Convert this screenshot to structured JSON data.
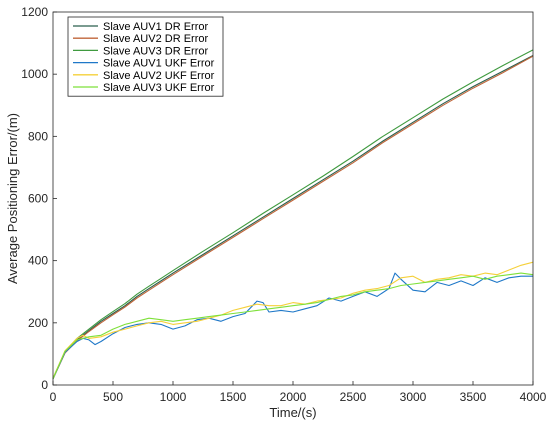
{
  "chart_data": {
    "type": "line",
    "xlabel": "Time/(s)",
    "ylabel": "Average Positioning Error/(m)",
    "xlim": [
      0,
      4000
    ],
    "ylim": [
      0,
      1200
    ],
    "xticks": [
      0,
      500,
      1000,
      1500,
      2000,
      2500,
      3000,
      3500,
      4000
    ],
    "yticks": [
      0,
      200,
      400,
      600,
      800,
      1000,
      1200
    ],
    "grid": false,
    "legend_position": "top-left",
    "series": [
      {
        "name": "Slave AUV1 DR Error",
        "color": "#2b5f4e",
        "x": [
          0,
          100,
          200,
          300,
          400,
          500,
          600,
          700,
          800,
          900,
          1000,
          1250,
          1500,
          1750,
          2000,
          2250,
          2500,
          2750,
          3000,
          3250,
          3500,
          3750,
          4000
        ],
        "y": [
          20,
          105,
          145,
          175,
          205,
          230,
          255,
          285,
          310,
          335,
          360,
          420,
          480,
          540,
          600,
          660,
          720,
          785,
          845,
          905,
          960,
          1010,
          1060
        ]
      },
      {
        "name": "Slave AUV2 DR Error",
        "color": "#c0653a",
        "x": [
          0,
          100,
          200,
          300,
          400,
          500,
          600,
          700,
          800,
          900,
          1000,
          1250,
          1500,
          1750,
          2000,
          2250,
          2500,
          2750,
          3000,
          3250,
          3500,
          3750,
          4000
        ],
        "y": [
          20,
          103,
          142,
          172,
          200,
          226,
          251,
          280,
          305,
          330,
          355,
          415,
          475,
          535,
          595,
          655,
          715,
          780,
          840,
          900,
          955,
          1005,
          1058
        ]
      },
      {
        "name": "Slave AUV3 DR Error",
        "color": "#3f9a3f",
        "x": [
          0,
          100,
          200,
          300,
          400,
          500,
          600,
          700,
          800,
          900,
          1000,
          1250,
          1500,
          1750,
          2000,
          2250,
          2500,
          2750,
          3000,
          3250,
          3500,
          3750,
          4000
        ],
        "y": [
          22,
          108,
          150,
          180,
          210,
          236,
          262,
          292,
          318,
          343,
          368,
          430,
          490,
          552,
          612,
          672,
          735,
          800,
          860,
          920,
          975,
          1028,
          1078
        ]
      },
      {
        "name": "Slave AUV1 UKF Error",
        "color": "#1f78c8",
        "x": [
          0,
          100,
          200,
          250,
          300,
          350,
          400,
          500,
          600,
          700,
          800,
          900,
          1000,
          1100,
          1200,
          1300,
          1400,
          1500,
          1600,
          1700,
          1750,
          1800,
          1900,
          2000,
          2100,
          2200,
          2300,
          2400,
          2500,
          2600,
          2700,
          2800,
          2850,
          2900,
          3000,
          3100,
          3200,
          3300,
          3400,
          3500,
          3600,
          3700,
          3800,
          3900,
          4000
        ],
        "y": [
          20,
          105,
          140,
          150,
          145,
          130,
          140,
          165,
          185,
          195,
          200,
          195,
          180,
          190,
          210,
          215,
          205,
          220,
          230,
          270,
          265,
          235,
          240,
          235,
          245,
          255,
          280,
          270,
          285,
          300,
          285,
          310,
          360,
          340,
          305,
          300,
          330,
          320,
          335,
          320,
          345,
          330,
          345,
          350,
          350
        ]
      },
      {
        "name": "Slave AUV2 UKF Error",
        "color": "#f5d03a",
        "x": [
          0,
          100,
          200,
          250,
          300,
          400,
          500,
          600,
          700,
          800,
          900,
          1000,
          1100,
          1200,
          1300,
          1400,
          1500,
          1600,
          1700,
          1800,
          1900,
          2000,
          2100,
          2200,
          2300,
          2400,
          2500,
          2600,
          2700,
          2800,
          2900,
          3000,
          3100,
          3200,
          3300,
          3400,
          3500,
          3600,
          3700,
          3800,
          3900,
          4000
        ],
        "y": [
          22,
          110,
          150,
          160,
          150,
          155,
          170,
          180,
          190,
          200,
          205,
          195,
          200,
          205,
          215,
          225,
          240,
          250,
          260,
          255,
          255,
          265,
          260,
          270,
          275,
          280,
          295,
          305,
          310,
          320,
          345,
          350,
          330,
          340,
          345,
          355,
          350,
          360,
          355,
          370,
          385,
          395
        ]
      },
      {
        "name": "Slave AUV3 UKF Error",
        "color": "#7ee03a",
        "x": [
          0,
          100,
          200,
          300,
          400,
          500,
          600,
          700,
          800,
          900,
          1000,
          1100,
          1200,
          1300,
          1400,
          1500,
          1600,
          1700,
          1800,
          1900,
          2000,
          2100,
          2200,
          2300,
          2400,
          2500,
          2600,
          2700,
          2800,
          2900,
          3000,
          3100,
          3200,
          3300,
          3400,
          3500,
          3600,
          3700,
          3800,
          3900,
          4000
        ],
        "y": [
          20,
          108,
          145,
          155,
          160,
          180,
          195,
          205,
          215,
          210,
          205,
          210,
          215,
          220,
          225,
          230,
          235,
          240,
          245,
          250,
          255,
          260,
          265,
          275,
          285,
          290,
          300,
          305,
          310,
          320,
          325,
          330,
          335,
          340,
          345,
          350,
          340,
          350,
          355,
          360,
          355
        ]
      }
    ]
  }
}
